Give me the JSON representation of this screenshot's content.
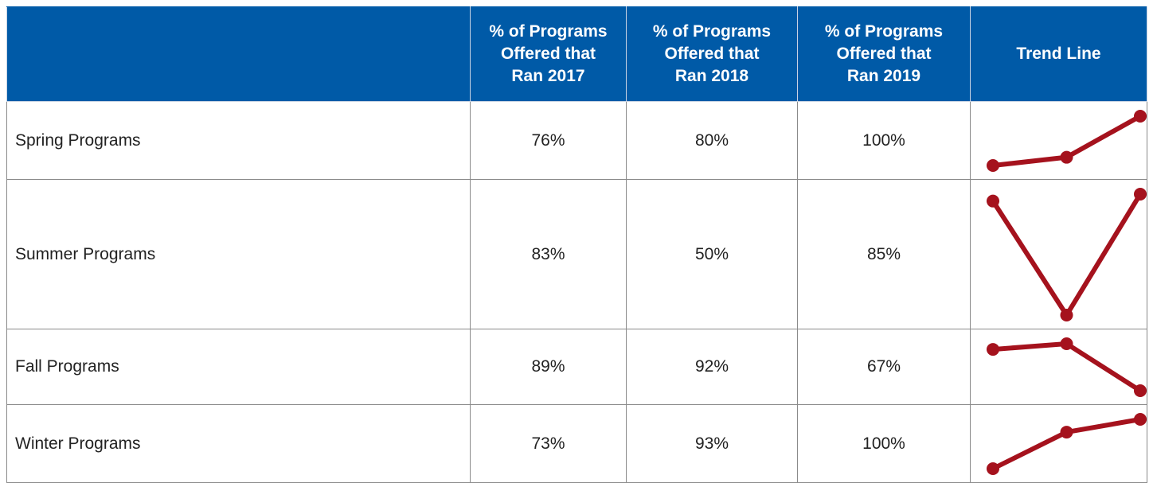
{
  "table": {
    "header": [
      "% of Programs Offered that Ran 2017",
      "% of Programs Offered that Ran 2018",
      "% of Programs Offered that Ran 2019",
      "Trend Line"
    ],
    "rows": [
      {
        "label": "Spring Programs",
        "values": [
          76,
          80,
          100
        ],
        "value_labels": [
          "76%",
          "80%",
          "100%"
        ]
      },
      {
        "label": "Summer Programs",
        "values": [
          83,
          50,
          85
        ],
        "value_labels": [
          "83%",
          "50%",
          "85%"
        ]
      },
      {
        "label": "Fall Programs",
        "values": [
          89,
          92,
          67
        ],
        "value_labels": [
          "89%",
          "92%",
          "67%"
        ]
      },
      {
        "label": "Winter Programs",
        "values": [
          73,
          93,
          100
        ],
        "value_labels": [
          "73%",
          "93%",
          "100%"
        ]
      }
    ],
    "line_color": "#a5121d"
  }
}
